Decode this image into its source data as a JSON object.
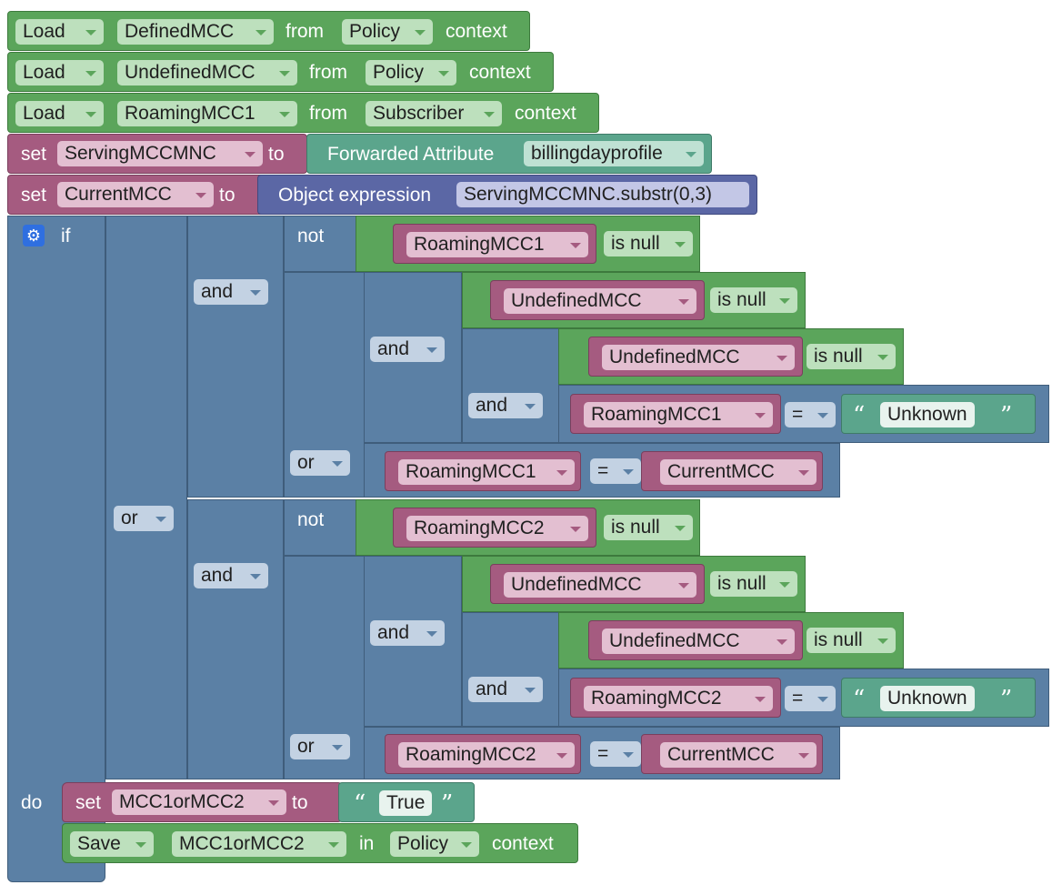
{
  "loads": [
    {
      "op": "Load",
      "var": "DefinedMCC",
      "from": "from",
      "ctx": "Policy",
      "context": "context"
    },
    {
      "op": "Load",
      "var": "UndefinedMCC",
      "from": "from",
      "ctx": "Policy",
      "context": "context"
    },
    {
      "op": "Load",
      "var": "RoamingMCC1",
      "from": "from",
      "ctx": "Subscriber",
      "context": "context"
    }
  ],
  "set1": {
    "set": "set",
    "var": "ServingMCCMNC",
    "to": "to",
    "label": "Forwarded Attribute",
    "attr": "billingdayprofile"
  },
  "set2": {
    "set": "set",
    "var": "CurrentMCC",
    "to": "to",
    "label": "Object expression",
    "expr": "ServingMCCMNC.substr(0,3)"
  },
  "ifblock": {
    "if": "if",
    "do": "do",
    "or_outer": "or",
    "not": "not",
    "and": "and",
    "or": "or",
    "is_null": "is null",
    "eq": "=",
    "unknown": "Unknown",
    "quote_open": "“",
    "quote_close": "”",
    "v_roam1": "RoamingMCC1",
    "v_roam2": "RoamingMCC2",
    "v_undef": "UndefinedMCC",
    "v_current": "CurrentMCC"
  },
  "doblock": {
    "set": "set",
    "var": "MCC1orMCC2",
    "to": "to",
    "value": "True",
    "save": "Save",
    "save_var": "MCC1orMCC2",
    "in": "in",
    "ctx": "Policy",
    "context": "context"
  },
  "colors": {
    "logic": "#5b80a5",
    "variable": "#a55b80",
    "context": "#5ba55b",
    "text": "#5ba58c",
    "expression": "#5b67a5"
  }
}
